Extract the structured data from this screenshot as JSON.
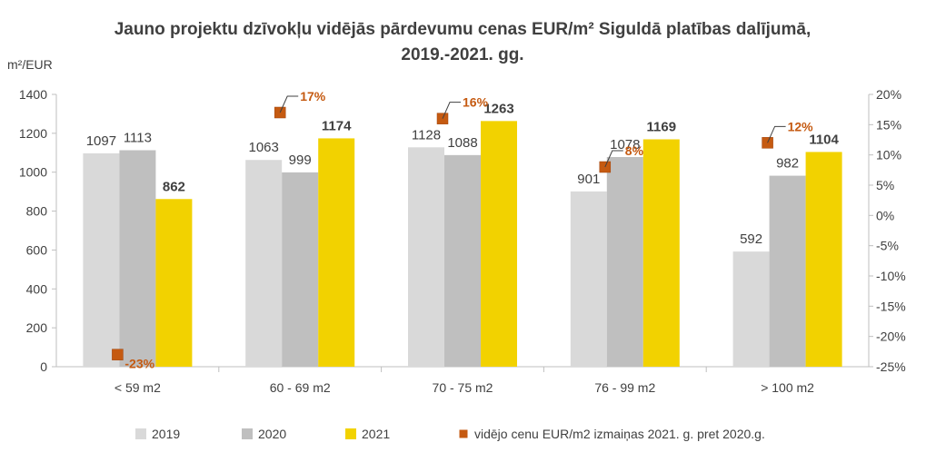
{
  "chart_data": {
    "type": "bar",
    "title_line1": "Jauno projektu dzīvokļu vidējās pārdevumu cenas EUR/m² Siguldā platības dalījumā,",
    "title_line2": "2019.-2021. gg.",
    "ylabel": "m²/EUR",
    "categories": [
      "< 59 m2",
      "60 - 69 m2",
      "70 - 75 m2",
      "76 - 99 m2",
      "> 100 m2"
    ],
    "series": [
      {
        "name": "2019",
        "values": [
          1097,
          1063,
          1128,
          901,
          592
        ],
        "color": "#d9d9d9"
      },
      {
        "name": "2020",
        "values": [
          1113,
          999,
          1088,
          1078,
          982
        ],
        "color": "#bfbfbf"
      },
      {
        "name": "2021",
        "values": [
          862,
          1174,
          1263,
          1169,
          1104
        ],
        "color": "#f2d200"
      }
    ],
    "change_series": {
      "name": "vidējo cenu EUR/m2 izmaiņas 2021. g. pret 2020.g.",
      "values": [
        -23,
        17,
        16,
        8,
        12
      ],
      "labels": [
        "-23%",
        "17%",
        "16%",
        "8%",
        "12%"
      ],
      "color": "#c55a11"
    },
    "ylim": [
      0,
      1400
    ],
    "y_ticks": [
      "0",
      "200",
      "400",
      "600",
      "800",
      "1000",
      "1200",
      "1400"
    ],
    "y2lim": [
      -25,
      20
    ],
    "y2_ticks": [
      "-25%",
      "-20%",
      "-15%",
      "-10%",
      "-5%",
      "0%",
      "5%",
      "10%",
      "15%",
      "20%"
    ],
    "legend_position": "bottom",
    "grid": false
  }
}
